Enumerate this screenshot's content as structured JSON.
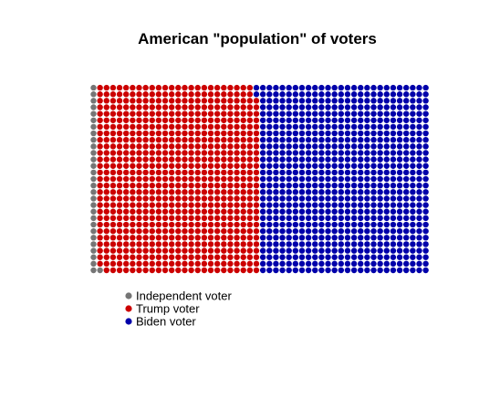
{
  "chart_data": {
    "type": "waffle",
    "title": "American \"population\" of voters",
    "grid": {
      "columns": 52,
      "rows": 29
    },
    "fill_order": "column-wise, bottom to top, left to right",
    "categories": [
      "Independent voter",
      "Trump voter",
      "Biden voter"
    ],
    "counts": [
      30,
      722,
      756
    ],
    "colors": [
      "#757575",
      "#cc0000",
      "#0000aa"
    ],
    "legend": {
      "placement": "bottom-left",
      "entries": [
        {
          "label": "Independent voter",
          "color": "#757575"
        },
        {
          "label": "Trump voter",
          "color": "#cc0000"
        },
        {
          "label": "Biden voter",
          "color": "#0000aa"
        }
      ]
    }
  }
}
